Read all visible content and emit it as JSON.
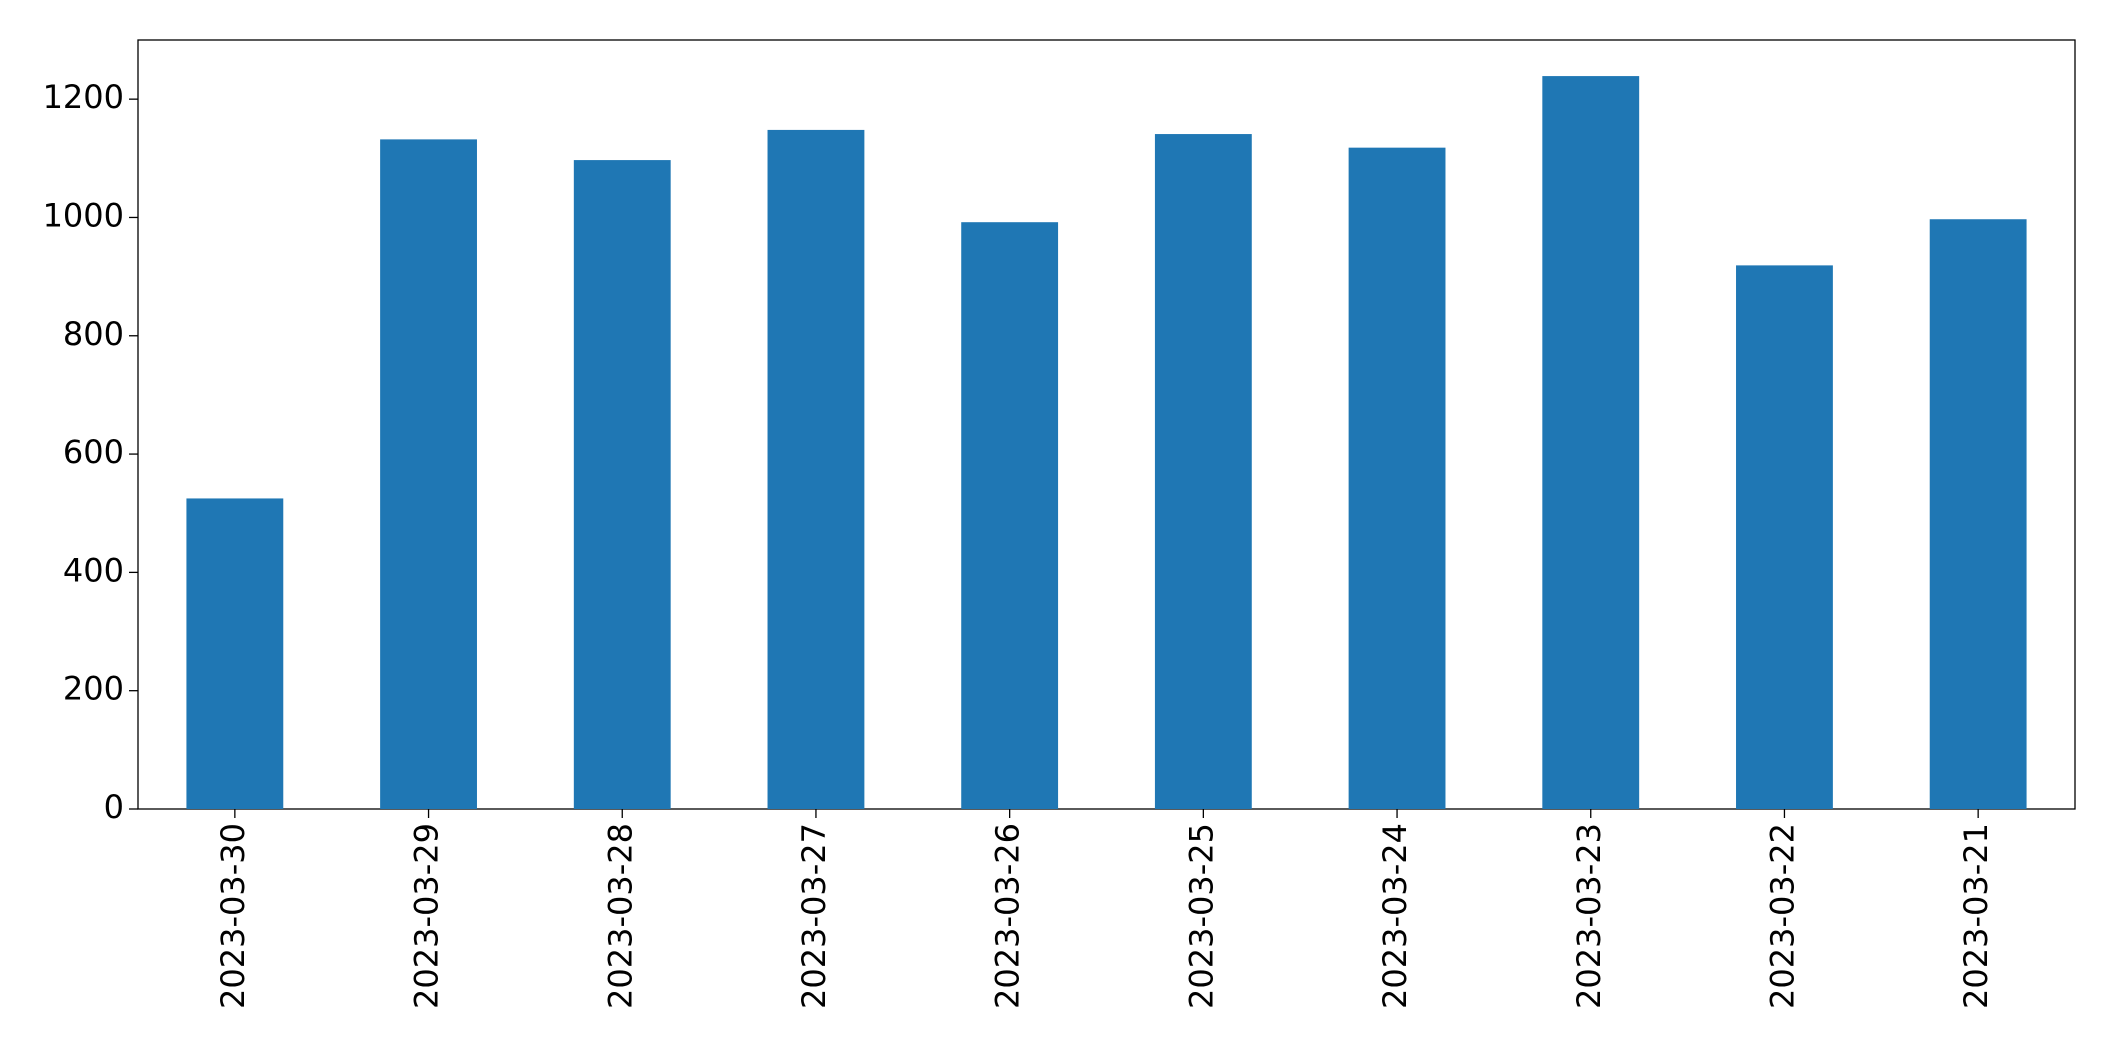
{
  "chart_data": {
    "type": "bar",
    "categories": [
      "2023-03-30",
      "2023-03-29",
      "2023-03-28",
      "2023-03-27",
      "2023-03-26",
      "2023-03-25",
      "2023-03-24",
      "2023-03-23",
      "2023-03-22",
      "2023-03-21"
    ],
    "values": [
      525,
      1132,
      1097,
      1148,
      992,
      1141,
      1118,
      1239,
      919,
      997
    ],
    "color": "#1f77b4",
    "ylim": [
      0,
      1300
    ],
    "yticks": [
      0,
      200,
      400,
      600,
      800,
      1000,
      1200
    ],
    "grid": false
  }
}
